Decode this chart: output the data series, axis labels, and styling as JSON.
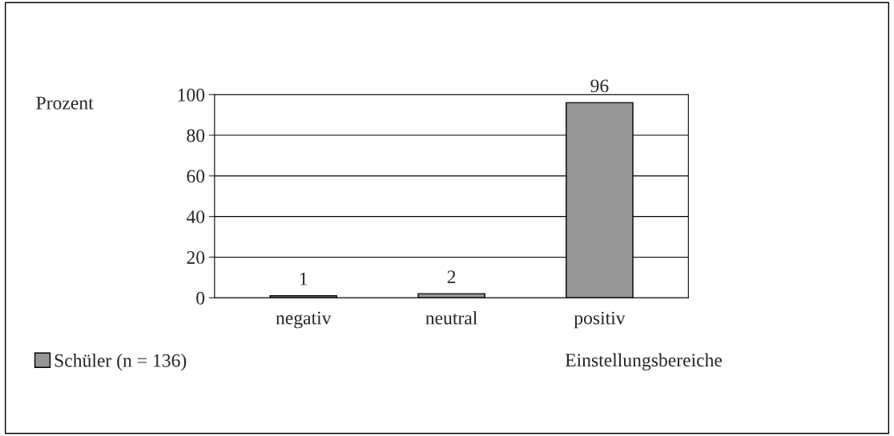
{
  "chart_data": {
    "type": "bar",
    "ylabel": "Prozent",
    "xlabel": "Einstellungsbereiche",
    "categories": [
      "negativ",
      "neutral",
      "positiv"
    ],
    "series": [
      {
        "name": "Schüler (n = 136)",
        "color": "#969696",
        "values": [
          1,
          2,
          96
        ]
      }
    ],
    "ylim": [
      0,
      100
    ],
    "yticks": [
      0,
      20,
      40,
      60,
      80,
      100
    ],
    "grid": "y",
    "data_labels": true,
    "legend": "bottom left"
  }
}
